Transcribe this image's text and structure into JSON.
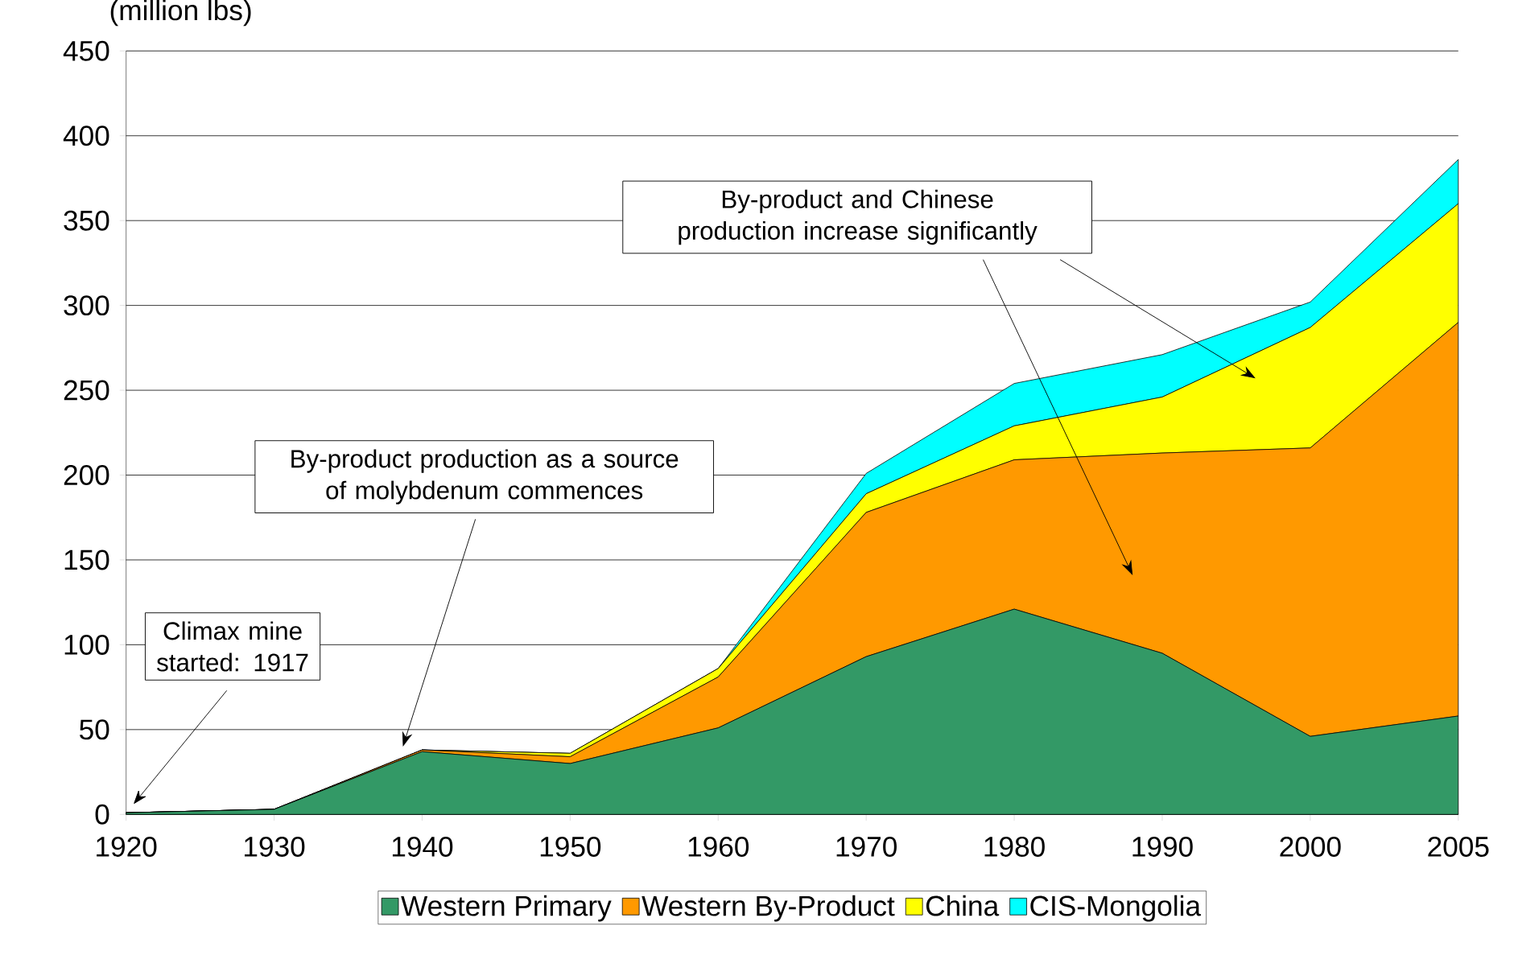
{
  "chart_data": {
    "type": "area",
    "stacked": true,
    "ylabel": "(million lbs)",
    "categories": [
      "1920",
      "1930",
      "1940",
      "1950",
      "1960",
      "1970",
      "1980",
      "1990",
      "2000",
      "2005"
    ],
    "series": [
      {
        "name": "Western Primary",
        "color": "#339966",
        "values": [
          1,
          3,
          37,
          30,
          51,
          93,
          121,
          95,
          46,
          58
        ]
      },
      {
        "name": "Western By-Product",
        "color": "#ff9900",
        "values": [
          0,
          0,
          1,
          4,
          30,
          85,
          88,
          118,
          170,
          232
        ]
      },
      {
        "name": "China",
        "color": "#ffff00",
        "values": [
          0,
          0,
          0,
          2,
          5,
          11,
          20,
          33,
          71,
          70
        ]
      },
      {
        "name": "CIS-Mongolia",
        "color": "#00ffff",
        "values": [
          0,
          0,
          0,
          0,
          0,
          12,
          25,
          25,
          15,
          26
        ]
      }
    ],
    "ylim": [
      0,
      450
    ],
    "yticks": [
      0,
      50,
      100,
      150,
      200,
      250,
      300,
      350,
      400,
      450
    ],
    "grid": "y",
    "legend": "bottom",
    "annotations": [
      "Climax mine started: 1917",
      "By-product production as a source of molybdenum commences",
      "By-product and Chinese production increase significantly"
    ]
  }
}
